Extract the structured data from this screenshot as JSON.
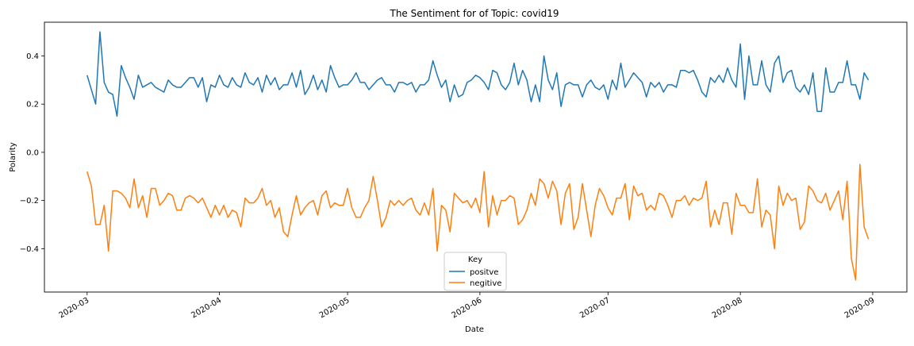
{
  "chart_data": {
    "type": "line",
    "title": "The Sentiment for of Topic: covid19",
    "xlabel": "Date",
    "ylabel": "Polarity",
    "x_start": "2020-03-01",
    "x_end": "2020-08-31",
    "xlim": [
      "2020-02-20",
      "2020-09-09"
    ],
    "ylim": [
      -0.58,
      0.54
    ],
    "x_ticks": [
      {
        "date": "2020-03-01",
        "label": "2020-03"
      },
      {
        "date": "2020-04-01",
        "label": "2020-04"
      },
      {
        "date": "2020-05-01",
        "label": "2020-05"
      },
      {
        "date": "2020-06-01",
        "label": "2020-06"
      },
      {
        "date": "2020-07-01",
        "label": "2020-07"
      },
      {
        "date": "2020-08-01",
        "label": "2020-08"
      },
      {
        "date": "2020-09-01",
        "label": "2020-09"
      }
    ],
    "y_ticks": [
      {
        "value": -0.4,
        "label": "−0.4"
      },
      {
        "value": -0.2,
        "label": "−0.2"
      },
      {
        "value": 0.0,
        "label": "0.0"
      },
      {
        "value": 0.2,
        "label": "0.2"
      },
      {
        "value": 0.4,
        "label": "0.4"
      }
    ],
    "grid": false,
    "legend": {
      "title": "Key",
      "position": "lower-center"
    },
    "series": [
      {
        "name": "positve",
        "color": "#1f77b4",
        "values": [
          0.32,
          0.26,
          0.2,
          0.5,
          0.29,
          0.25,
          0.24,
          0.15,
          0.36,
          0.31,
          0.27,
          0.22,
          0.32,
          0.27,
          0.28,
          0.29,
          0.27,
          0.26,
          0.25,
          0.3,
          0.28,
          0.27,
          0.27,
          0.29,
          0.31,
          0.31,
          0.27,
          0.31,
          0.21,
          0.28,
          0.27,
          0.32,
          0.28,
          0.27,
          0.31,
          0.28,
          0.27,
          0.33,
          0.29,
          0.28,
          0.31,
          0.25,
          0.32,
          0.28,
          0.31,
          0.26,
          0.28,
          0.28,
          0.33,
          0.27,
          0.34,
          0.24,
          0.27,
          0.32,
          0.26,
          0.3,
          0.25,
          0.36,
          0.31,
          0.27,
          0.28,
          0.28,
          0.3,
          0.33,
          0.29,
          0.29,
          0.26,
          0.28,
          0.3,
          0.31,
          0.28,
          0.28,
          0.25,
          0.29,
          0.29,
          0.28,
          0.29,
          0.25,
          0.28,
          0.28,
          0.3,
          0.38,
          0.32,
          0.27,
          0.3,
          0.21,
          0.28,
          0.23,
          0.24,
          0.29,
          0.3,
          0.32,
          0.31,
          0.29,
          0.26,
          0.34,
          0.33,
          0.28,
          0.26,
          0.29,
          0.37,
          0.28,
          0.34,
          0.3,
          0.21,
          0.28,
          0.21,
          0.4,
          0.3,
          0.26,
          0.33,
          0.19,
          0.28,
          0.29,
          0.28,
          0.28,
          0.23,
          0.28,
          0.3,
          0.27,
          0.26,
          0.28,
          0.22,
          0.3,
          0.26,
          0.37,
          0.27,
          0.3,
          0.33,
          0.31,
          0.29,
          0.23,
          0.29,
          0.27,
          0.29,
          0.25,
          0.28,
          0.28,
          0.27,
          0.34,
          0.34,
          0.33,
          0.34,
          0.3,
          0.25,
          0.23,
          0.31,
          0.29,
          0.32,
          0.29,
          0.35,
          0.3,
          0.27,
          0.45,
          0.22,
          0.4,
          0.28,
          0.28,
          0.38,
          0.28,
          0.25,
          0.37,
          0.4,
          0.29,
          0.33,
          0.34,
          0.27,
          0.25,
          0.28,
          0.24,
          0.33,
          0.17,
          0.17,
          0.35,
          0.25,
          0.25,
          0.29,
          0.29,
          0.38,
          0.28,
          0.28,
          0.22,
          0.33,
          0.3
        ]
      },
      {
        "name": "negitive",
        "color": "#ff7f0e",
        "values": [
          -0.08,
          -0.14,
          -0.3,
          -0.3,
          -0.22,
          -0.41,
          -0.16,
          -0.16,
          -0.17,
          -0.19,
          -0.23,
          -0.11,
          -0.23,
          -0.18,
          -0.27,
          -0.15,
          -0.15,
          -0.22,
          -0.2,
          -0.17,
          -0.18,
          -0.24,
          -0.24,
          -0.19,
          -0.18,
          -0.19,
          -0.21,
          -0.19,
          -0.23,
          -0.27,
          -0.22,
          -0.26,
          -0.22,
          -0.27,
          -0.24,
          -0.25,
          -0.31,
          -0.19,
          -0.21,
          -0.21,
          -0.19,
          -0.15,
          -0.22,
          -0.2,
          -0.27,
          -0.23,
          -0.33,
          -0.35,
          -0.26,
          -0.18,
          -0.26,
          -0.23,
          -0.21,
          -0.2,
          -0.26,
          -0.18,
          -0.16,
          -0.23,
          -0.21,
          -0.22,
          -0.22,
          -0.15,
          -0.23,
          -0.27,
          -0.27,
          -0.23,
          -0.2,
          -0.1,
          -0.2,
          -0.31,
          -0.27,
          -0.2,
          -0.22,
          -0.2,
          -0.22,
          -0.2,
          -0.19,
          -0.24,
          -0.26,
          -0.21,
          -0.26,
          -0.15,
          -0.41,
          -0.22,
          -0.24,
          -0.33,
          -0.17,
          -0.19,
          -0.21,
          -0.2,
          -0.23,
          -0.19,
          -0.25,
          -0.08,
          -0.31,
          -0.18,
          -0.26,
          -0.2,
          -0.2,
          -0.18,
          -0.19,
          -0.3,
          -0.28,
          -0.24,
          -0.17,
          -0.22,
          -0.11,
          -0.13,
          -0.19,
          -0.12,
          -0.16,
          -0.3,
          -0.17,
          -0.13,
          -0.32,
          -0.27,
          -0.13,
          -0.24,
          -0.35,
          -0.22,
          -0.15,
          -0.18,
          -0.23,
          -0.26,
          -0.19,
          -0.19,
          -0.13,
          -0.28,
          -0.14,
          -0.18,
          -0.17,
          -0.24,
          -0.22,
          -0.24,
          -0.17,
          -0.18,
          -0.22,
          -0.27,
          -0.2,
          -0.2,
          -0.18,
          -0.22,
          -0.19,
          -0.2,
          -0.19,
          -0.12,
          -0.31,
          -0.24,
          -0.3,
          -0.21,
          -0.21,
          -0.34,
          -0.17,
          -0.22,
          -0.22,
          -0.25,
          -0.25,
          -0.11,
          -0.31,
          -0.24,
          -0.26,
          -0.4,
          -0.14,
          -0.22,
          -0.17,
          -0.2,
          -0.19,
          -0.32,
          -0.29,
          -0.14,
          -0.16,
          -0.2,
          -0.21,
          -0.17,
          -0.24,
          -0.2,
          -0.16,
          -0.28,
          -0.12,
          -0.44,
          -0.53,
          -0.05,
          -0.31,
          -0.36
        ]
      }
    ]
  }
}
